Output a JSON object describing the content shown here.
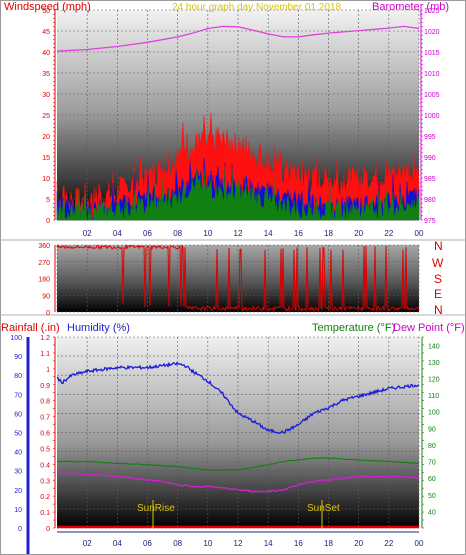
{
  "colors": {
    "wind_title": "#e00000",
    "baro_title": "#d000d0",
    "caption": "#d8c400",
    "wind_speed": "#ff1010",
    "wind_avg": "#1010d0",
    "wind_gust_base": "#108010",
    "barometer": "#e040e0",
    "direction": "#e00000",
    "rain": "#e00000",
    "humidity": "#1a1ad8",
    "temperature": "#128012",
    "dew_point": "#d020d0",
    "rain_axis": "#e00000",
    "hum_axis": "#2020d0",
    "temp_axis": "#108010",
    "x_axis": "#202080",
    "sun": "#d8c400"
  },
  "panel_top": {
    "title_left": "Windspeed (mph)",
    "caption": "24 hour graph day   November 01 2018",
    "title_right": "Barometer (mb)"
  },
  "panel_dir": {
    "dir_labels": [
      "N",
      "W",
      "S",
      "E",
      "N"
    ]
  },
  "panel_bottom": {
    "title_rain": "Rainfall (.in)",
    "title_humidity": "Humidity (%)",
    "title_temp": "Temperature (°F)",
    "title_dew": "Dew Point (°F)",
    "sunrise_label": "SunRise",
    "sunset_label": "SunSet"
  },
  "chart_data": [
    {
      "type": "line",
      "id": "wind_baro",
      "title": "24 hour graph day   November 01 2018",
      "xlabel": "",
      "x_ticks": [
        "02",
        "04",
        "06",
        "08",
        "10",
        "12",
        "14",
        "16",
        "18",
        "20",
        "22",
        "00"
      ],
      "ylim_left": [
        0,
        50
      ],
      "y_ticks_left": [
        0,
        5,
        10,
        15,
        20,
        25,
        30,
        35,
        40,
        45,
        50
      ],
      "ylabel_left": "Windspeed (mph)",
      "ylim_right": [
        975,
        1025
      ],
      "y_ticks_right": [
        975,
        980,
        985,
        990,
        995,
        1000,
        1005,
        1010,
        1015,
        1020,
        1025
      ],
      "ylabel_right": "Barometer (mb)",
      "series": [
        {
          "hours": [
            0,
            1,
            2,
            3,
            4,
            5,
            6,
            7,
            8,
            8.5,
            9,
            9.5,
            10,
            11,
            12,
            13,
            14,
            15,
            16,
            17,
            18,
            19,
            20,
            21,
            22,
            23,
            24
          ],
          "values": [
            5,
            4,
            4,
            5,
            6,
            8,
            10,
            12,
            14,
            18,
            16,
            18,
            18,
            18,
            17,
            15,
            13,
            11,
            10,
            9,
            9,
            9,
            9,
            10,
            10,
            11,
            12
          ]
        },
        {
          "hours": [
            0,
            2,
            4,
            6,
            8,
            9,
            10,
            12,
            14,
            16,
            18,
            20,
            22,
            24
          ],
          "values": [
            3,
            2,
            3,
            5,
            7,
            9,
            9,
            8,
            6,
            4,
            3,
            3,
            4,
            5
          ]
        },
        {
          "hours": [
            0,
            2,
            4,
            6,
            8,
            9,
            10,
            12,
            14,
            16,
            18,
            20,
            22,
            24
          ],
          "values": [
            2,
            1,
            2,
            3,
            5,
            8,
            7,
            6,
            4,
            2,
            2,
            2,
            3,
            3
          ]
        },
        {
          "axis": "right",
          "hours": [
            0,
            2,
            4,
            6,
            8,
            9,
            10,
            11,
            12,
            13,
            14,
            15,
            16,
            17,
            18,
            20,
            22,
            23,
            24
          ],
          "values": [
            1015.2,
            1015.6,
            1016.3,
            1017.3,
            1018.6,
            1019.5,
            1020.6,
            1021.1,
            1021.0,
            1020.2,
            1019.3,
            1018.6,
            1018.6,
            1019.1,
            1019.5,
            1020.1,
            1020.7,
            1021.1,
            1020.6
          ]
        }
      ]
    },
    {
      "type": "scatter",
      "id": "direction",
      "xlabel": "",
      "x_ticks": [
        "02",
        "04",
        "06",
        "08",
        "10",
        "12",
        "14",
        "16",
        "18",
        "20",
        "22",
        "00"
      ],
      "ylim": [
        0,
        360
      ],
      "y_ticks": [
        0,
        90,
        180,
        270,
        360
      ],
      "series": [
        {
          "hours": [
            0,
            1,
            2,
            3,
            4,
            5,
            6,
            7,
            8,
            9,
            10,
            12,
            14,
            16,
            18,
            20,
            22,
            24
          ],
          "values": [
            330,
            340,
            350,
            350,
            352,
            355,
            355,
            355,
            355,
            20,
            20,
            15,
            15,
            20,
            15,
            15,
            15,
            15
          ]
        }
      ]
    },
    {
      "type": "line",
      "id": "temp_hum",
      "xlabel": "",
      "x_ticks": [
        "02",
        "04",
        "06",
        "08",
        "10",
        "12",
        "14",
        "16",
        "18",
        "20",
        "22",
        "00"
      ],
      "ylim_rain": [
        0,
        1.2
      ],
      "y_ticks_rain": [
        0,
        0.1,
        0.2,
        0.3,
        0.4,
        0.5,
        0.6,
        0.7,
        0.8,
        0.9,
        1,
        1.1,
        1.2
      ],
      "ylabel_rain": "Rainfall (.in)",
      "ylim_humidity": [
        0,
        100
      ],
      "y_ticks_humidity": [
        0,
        10,
        20,
        30,
        40,
        50,
        60,
        70,
        80,
        90,
        100
      ],
      "ylabel_humidity": "Humidity (%)",
      "ylim_temp": [
        30,
        145
      ],
      "y_ticks_temp": [
        40,
        50,
        60,
        70,
        80,
        90,
        100,
        110,
        120,
        130,
        140
      ],
      "ylabel_temp": "Temperature (°F)",
      "ylabel_dew": "Dew Point (°F)",
      "sunrise_hour": 7.1,
      "sunset_hour": 17.0,
      "series": [
        {
          "axis": "humidity",
          "hours": [
            0,
            0.3,
            1,
            2,
            3,
            4,
            5,
            6,
            7,
            8,
            8.5,
            9,
            10,
            11,
            12,
            13,
            14,
            15,
            16,
            17,
            18,
            19,
            20,
            21,
            22,
            23,
            24
          ],
          "values": [
            79,
            76,
            80,
            82,
            83,
            84,
            84,
            84,
            85,
            86,
            85,
            82,
            77,
            70,
            60,
            56,
            51,
            50,
            54,
            60,
            63,
            67,
            69,
            71,
            73,
            74,
            75
          ]
        },
        {
          "axis": "temp",
          "hours": [
            0,
            2,
            4,
            6,
            8,
            10,
            12,
            14,
            15,
            16,
            17,
            18,
            20,
            22,
            24
          ],
          "values": [
            70,
            70,
            69,
            68,
            67,
            65,
            65,
            68,
            70,
            71,
            72,
            72,
            71,
            70,
            69
          ]
        },
        {
          "axis": "temp",
          "hours": [
            0,
            1,
            2,
            3,
            4,
            5,
            6,
            7,
            8,
            9,
            10,
            11,
            12,
            13,
            14,
            15,
            16,
            17,
            18,
            19,
            20,
            21,
            22,
            23,
            24
          ],
          "values": [
            63,
            63,
            62,
            62,
            61,
            60,
            59,
            58,
            56,
            55,
            55,
            54,
            53,
            52,
            52,
            53,
            56,
            58,
            59,
            60,
            61,
            61,
            61,
            61,
            60
          ]
        },
        {
          "axis": "rain",
          "hours": [
            0,
            24
          ],
          "values": [
            0,
            0
          ]
        }
      ]
    }
  ]
}
